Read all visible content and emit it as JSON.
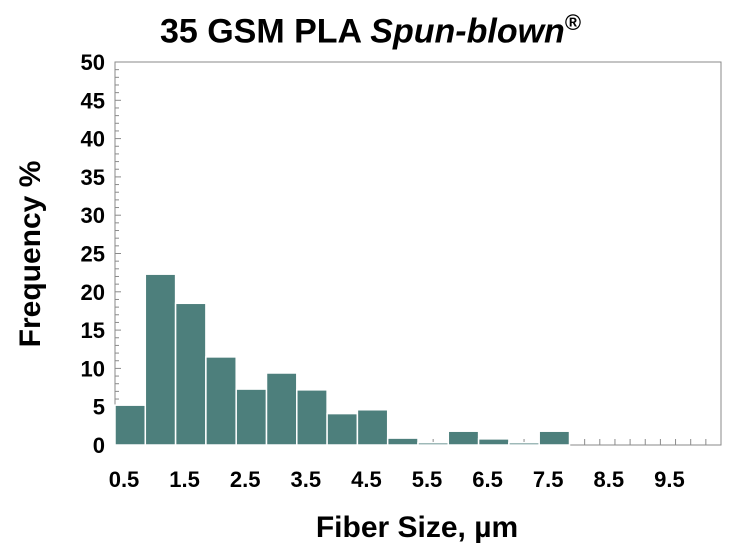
{
  "chart_data": {
    "type": "bar",
    "title_main": "35 GSM PLA ",
    "title_italic": "Spun-blown",
    "title_mark": "®",
    "xlabel": "Fiber Size, µm",
    "ylabel": "Frequency %",
    "ylim": [
      0,
      50
    ],
    "y_ticks": [
      "0",
      "5",
      "10",
      "15",
      "20",
      "25",
      "30",
      "35",
      "40",
      "45",
      "50"
    ],
    "x_tick_labels": [
      "0.5",
      "1.5",
      "2.5",
      "3.5",
      "4.5",
      "5.5",
      "6.5",
      "7.5",
      "8.5",
      "9.5"
    ],
    "bin_width": 0.5,
    "bins": [
      {
        "x": 0.5,
        "value": 5.2
      },
      {
        "x": 1.0,
        "value": 22.3
      },
      {
        "x": 1.5,
        "value": 18.5
      },
      {
        "x": 2.0,
        "value": 11.5
      },
      {
        "x": 2.5,
        "value": 7.3
      },
      {
        "x": 3.0,
        "value": 9.4
      },
      {
        "x": 3.5,
        "value": 7.2
      },
      {
        "x": 4.0,
        "value": 4.1
      },
      {
        "x": 4.5,
        "value": 4.6
      },
      {
        "x": 5.0,
        "value": 0.9
      },
      {
        "x": 5.5,
        "value": 0.3
      },
      {
        "x": 6.0,
        "value": 1.8
      },
      {
        "x": 6.5,
        "value": 0.8
      },
      {
        "x": 7.0,
        "value": 0.3
      },
      {
        "x": 7.5,
        "value": 1.8
      }
    ],
    "bar_color": "#4d7f7c",
    "grid": false
  }
}
